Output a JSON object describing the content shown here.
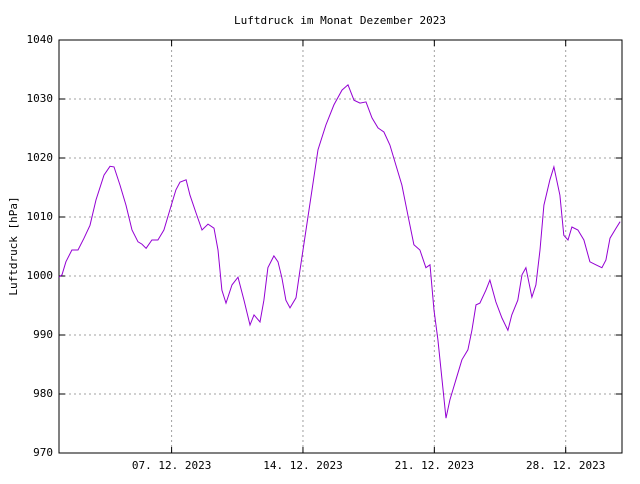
{
  "chart_data": {
    "type": "line",
    "title": "Luftdruck im Monat Dezember 2023",
    "ylabel": "Luftdruck [hPa]",
    "xlim": [
      1,
      31
    ],
    "xticks": [
      {
        "value": 7,
        "label": "07. 12. 2023"
      },
      {
        "value": 14,
        "label": "14. 12. 2023"
      },
      {
        "value": 21,
        "label": "21. 12. 2023"
      },
      {
        "value": 28,
        "label": "28. 12. 2023"
      }
    ],
    "ylim": [
      970,
      1040
    ],
    "yticks": [
      970,
      980,
      990,
      1000,
      1010,
      1020,
      1030,
      1040
    ],
    "grid": true,
    "series": [
      {
        "color": "#9400d3",
        "x": [
          1.0,
          1.16,
          1.37,
          1.69,
          2.01,
          2.33,
          2.65,
          2.97,
          3.4,
          3.72,
          3.93,
          4.25,
          4.57,
          4.89,
          5.21,
          5.42,
          5.64,
          5.95,
          6.27,
          6.59,
          6.91,
          7.23,
          7.45,
          7.77,
          7.98,
          8.3,
          8.62,
          8.94,
          9.26,
          9.47,
          9.68,
          9.9,
          10.22,
          10.54,
          10.86,
          11.18,
          11.39,
          11.71,
          11.92,
          12.13,
          12.45,
          12.67,
          12.88,
          13.09,
          13.31,
          13.63,
          13.84,
          14.16,
          14.48,
          14.8,
          15.22,
          15.65,
          16.08,
          16.4,
          16.72,
          17.04,
          17.36,
          17.68,
          18.0,
          18.31,
          18.63,
          18.95,
          19.27,
          19.59,
          19.91,
          20.23,
          20.55,
          20.77,
          20.98,
          21.19,
          21.62,
          21.83,
          22.15,
          22.47,
          22.79,
          23.0,
          23.22,
          23.43,
          23.75,
          23.96,
          24.28,
          24.6,
          24.92,
          25.13,
          25.45,
          25.67,
          25.88,
          26.2,
          26.41,
          26.63,
          26.84,
          27.16,
          27.37,
          27.69,
          27.9,
          28.12,
          28.33,
          28.65,
          28.97,
          29.29,
          29.61,
          29.93,
          30.14,
          30.36,
          30.68,
          30.9
        ],
        "values": [
          999.8,
          1000.2,
          1002.4,
          1004.4,
          1004.4,
          1006.4,
          1008.6,
          1012.9,
          1017.1,
          1018.6,
          1018.5,
          1015.4,
          1012.0,
          1007.8,
          1005.8,
          1005.4,
          1004.7,
          1006.1,
          1006.1,
          1007.8,
          1011.2,
          1014.6,
          1015.9,
          1016.3,
          1013.7,
          1010.7,
          1007.8,
          1008.8,
          1008.1,
          1004.4,
          997.6,
          995.4,
          998.5,
          999.8,
          995.9,
          991.7,
          993.4,
          992.2,
          995.9,
          1001.4,
          1003.4,
          1002.4,
          999.7,
          995.9,
          994.6,
          996.3,
          1001.0,
          1007.8,
          1014.6,
          1021.4,
          1025.6,
          1029.0,
          1031.5,
          1032.4,
          1029.8,
          1029.3,
          1029.5,
          1026.8,
          1025.1,
          1024.4,
          1022.2,
          1018.8,
          1015.4,
          1010.3,
          1005.3,
          1004.4,
          1001.4,
          1001.9,
          994.2,
          989.2,
          975.9,
          979.0,
          982.4,
          985.8,
          987.5,
          990.8,
          995.1,
          995.4,
          997.6,
          999.3,
          995.6,
          992.9,
          990.8,
          993.4,
          995.9,
          1000.2,
          1001.4,
          996.4,
          998.5,
          1004.4,
          1012.0,
          1016.3,
          1018.5,
          1013.7,
          1006.9,
          1006.1,
          1008.3,
          1007.8,
          1006.1,
          1002.4,
          1001.9,
          1001.4,
          1002.7,
          1006.4,
          1008.1,
          1009.2
        ]
      }
    ]
  }
}
